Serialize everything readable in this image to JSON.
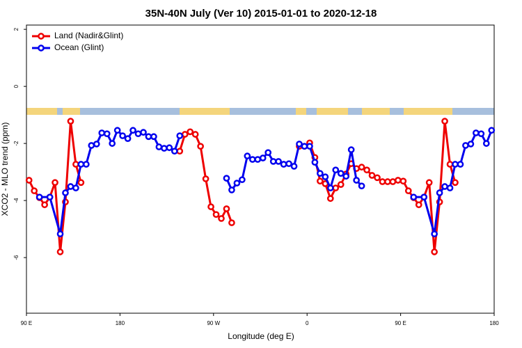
{
  "chart_data": {
    "type": "line",
    "title": "35N-40N July (Ver 10)   2015-01-01 to 2020-12-18",
    "xlabel": "Longitude (deg E)",
    "ylabel": "XCO2 - MLO trend (ppm)",
    "xlim": [
      90,
      540
    ],
    "xticks": [
      {
        "value": 90,
        "label": "90 E"
      },
      180,
      {
        "value": 270,
        "label": "90 W"
      },
      {
        "value": 360,
        "label": "0"
      },
      {
        "value": 450,
        "label": "90 E"
      },
      {
        "value": 540,
        "label": "180"
      }
    ],
    "ylim": [
      -7.95,
      2.15
    ],
    "yticks": [
      -6,
      -4,
      -2,
      0,
      2
    ],
    "legend": "topleft",
    "series": [
      {
        "name": "Land (Nadir&Glint)",
        "color": "#ee0000",
        "x": [
          92.5,
          97.5,
          102.5,
          107.5,
          112.5,
          117.5,
          122.5,
          127.5,
          132.5,
          137.5,
          142.5,
          147.5,
          237.5,
          242.5,
          247.5,
          252.5,
          257.5,
          262.5,
          267.5,
          272.5,
          277.5,
          282.5,
          287.5,
          292.5,
          352.5,
          357.5,
          362.5,
          367.5,
          372.5,
          377.5,
          382.5,
          387.5,
          392.5,
          397.5,
          402.5,
          407.5,
          412.5,
          417.5,
          422.5,
          427.5,
          432.5,
          437.5,
          442.5,
          447.5,
          452.5,
          457.5,
          462.5,
          467.5,
          472.5,
          477.5,
          482.5,
          487.5,
          492.5,
          497.5,
          502.5
        ],
        "values": [
          -3.29,
          -3.66,
          -3.9,
          -4.15,
          -3.88,
          -3.37,
          -5.8,
          -4.05,
          -1.22,
          -2.73,
          -3.37,
          null,
          -2.27,
          -1.68,
          -1.59,
          -1.68,
          -2.1,
          -3.24,
          -4.22,
          -4.49,
          -4.63,
          -4.29,
          -4.78,
          null,
          -2.1,
          -2.1,
          -1.98,
          -2.49,
          -3.32,
          -3.41,
          -3.93,
          -3.56,
          -3.44,
          -3.07,
          -2.71,
          -2.88,
          -2.83,
          -2.93,
          -3.12,
          -3.2,
          -3.34,
          -3.34,
          -3.34,
          -3.29,
          -3.32,
          -3.66,
          -3.9,
          -4.15,
          -3.88,
          -3.37,
          -5.8,
          -4.05,
          -1.22,
          -2.73,
          -3.37
        ]
      },
      {
        "name": "Ocean (Glint)",
        "color": "#0000ee",
        "x": [
          102.5,
          112.5,
          122.5,
          127.5,
          132.5,
          137.5,
          142.5,
          147.5,
          152.5,
          157.5,
          162.5,
          167.5,
          172.5,
          177.5,
          182.5,
          187.5,
          192.5,
          197.5,
          202.5,
          207.5,
          212.5,
          217.5,
          222.5,
          227.5,
          232.5,
          237.5,
          242.5,
          282.5,
          287.5,
          292.5,
          297.5,
          302.5,
          307.5,
          312.5,
          317.5,
          322.5,
          327.5,
          332.5,
          337.5,
          342.5,
          347.5,
          352.5,
          357.5,
          362.5,
          367.5,
          372.5,
          377.5,
          382.5,
          387.5,
          392.5,
          397.5,
          402.5,
          407.5,
          412.5,
          417.5,
          462.5,
          472.5,
          482.5,
          487.5,
          492.5,
          497.5,
          502.5,
          507.5,
          512.5,
          517.5,
          522.5,
          527.5,
          532.5,
          537.5
        ],
        "values": [
          -3.88,
          -3.88,
          -5.17,
          -3.73,
          -3.51,
          -3.56,
          -2.73,
          -2.73,
          -2.07,
          -2.02,
          -1.63,
          -1.66,
          -2.0,
          -1.54,
          -1.73,
          -1.83,
          -1.54,
          -1.66,
          -1.61,
          -1.76,
          -1.76,
          -2.12,
          -2.17,
          -2.15,
          -2.27,
          -1.73,
          null,
          -3.22,
          -3.63,
          -3.39,
          -3.27,
          -2.44,
          -2.56,
          -2.56,
          -2.51,
          -2.32,
          -2.63,
          -2.63,
          -2.73,
          -2.71,
          -2.8,
          -2.02,
          -2.1,
          -2.1,
          -2.66,
          -3.05,
          -3.17,
          -3.56,
          -2.93,
          -3.05,
          -3.15,
          -2.22,
          -3.29,
          -3.49,
          null,
          -3.88,
          -3.88,
          -5.17,
          -3.73,
          -3.51,
          -3.56,
          -2.73,
          -2.73,
          -2.07,
          -2.02,
          -1.63,
          -1.66,
          -2.0,
          -1.54
        ]
      }
    ]
  }
}
